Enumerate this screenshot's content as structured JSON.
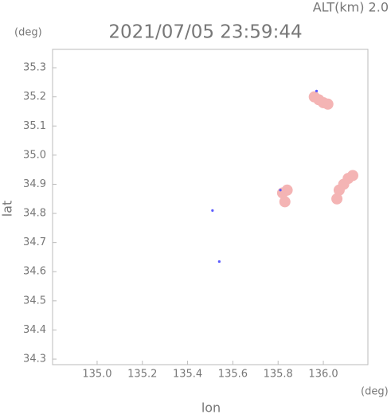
{
  "chart_data": {
    "type": "scatter",
    "altitude_label": "ALT(km) 2.0",
    "title": "2021/07/05 23:59:44",
    "y_unit": "(deg)",
    "x_unit": "(deg)",
    "ylabel": "lat",
    "xlabel": "lon",
    "xlim": [
      134.803,
      136.197
    ],
    "ylim": [
      34.281,
      35.363
    ],
    "xticks": [
      {
        "value": 135,
        "label": "135.0"
      },
      135.2,
      135.4,
      135.6,
      135.8,
      {
        "value": 136,
        "label": "136.0"
      }
    ],
    "yticks": [
      34.3,
      34.4,
      34.5,
      34.6,
      34.7,
      34.8,
      34.9,
      {
        "value": 35,
        "label": "35.0"
      },
      35.1,
      35.2,
      35.3
    ],
    "series": [
      {
        "color": "#f4b4b4",
        "x": [
          135.96,
          135.98,
          136.0,
          136.02,
          135.82,
          135.84,
          135.83,
          136.07,
          136.09,
          136.11,
          136.13,
          136.06
        ],
        "values": [
          35.2,
          35.19,
          35.18,
          35.175,
          34.87,
          34.88,
          34.84,
          34.88,
          34.9,
          34.92,
          34.93,
          34.85
        ]
      },
      {
        "color": "#5a5aff",
        "x": [
          135.51,
          135.54,
          135.81,
          135.97
        ],
        "values": [
          34.81,
          34.635,
          34.88,
          35.22
        ]
      }
    ]
  }
}
